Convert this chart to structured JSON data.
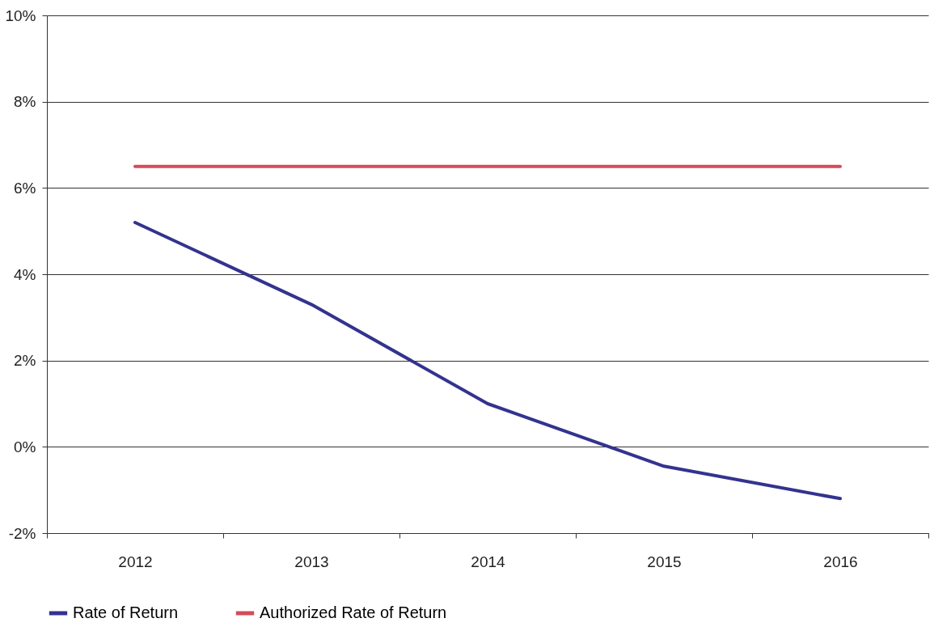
{
  "chart_data": {
    "type": "line",
    "categories": [
      "2012",
      "2013",
      "2014",
      "2015",
      "2016"
    ],
    "series": [
      {
        "name": "Rate of Return",
        "color": "#33338f",
        "values": [
          5.2,
          3.3,
          1.0,
          -0.45,
          -1.2
        ]
      },
      {
        "name": "Authorized Rate of Return",
        "color": "#d54a5a",
        "values": [
          6.5,
          6.5,
          6.5,
          6.5,
          6.5
        ]
      }
    ],
    "ylim": [
      -2,
      10
    ],
    "yticks": [
      {
        "value": -2,
        "label": "-2%"
      },
      {
        "value": 0,
        "label": "0%"
      },
      {
        "value": 2,
        "label": "2%"
      },
      {
        "value": 4,
        "label": "4%"
      },
      {
        "value": 6,
        "label": "6%"
      },
      {
        "value": 8,
        "label": "8%"
      },
      {
        "value": 10,
        "label": "10%"
      }
    ],
    "grid": "y",
    "legend": "bottom"
  }
}
